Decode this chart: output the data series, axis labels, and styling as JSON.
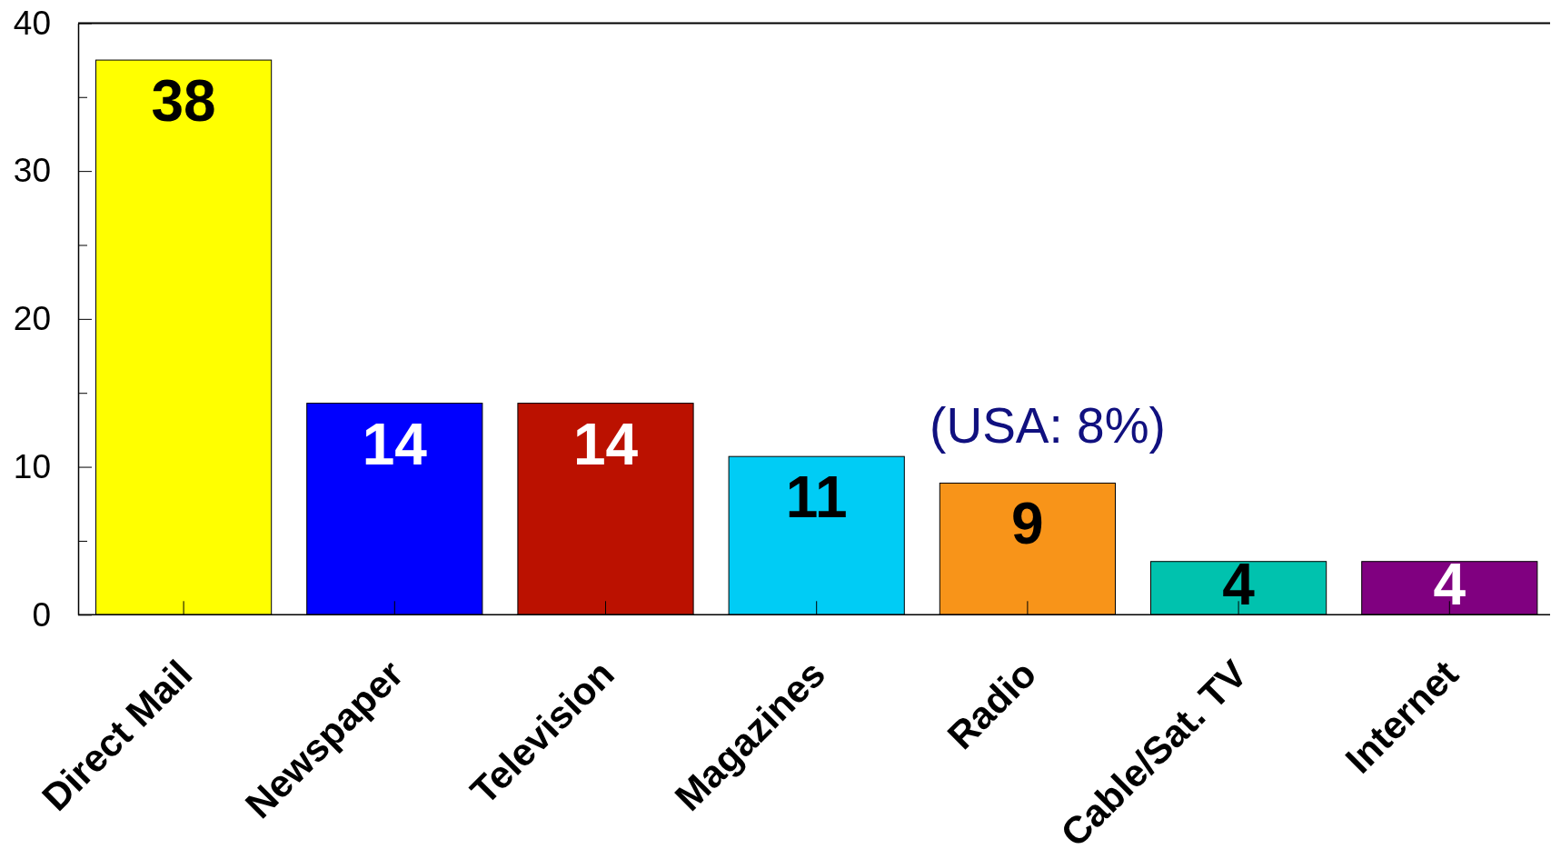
{
  "chart_data": {
    "type": "bar",
    "categories": [
      "Direct Mail",
      "Newspaper",
      "Television",
      "Magazines",
      "Radio",
      "Cable/Sat. TV",
      "Internet"
    ],
    "values": [
      37.5,
      14.3,
      14.3,
      10.7,
      8.9,
      3.6,
      3.6
    ],
    "colors": [
      "#ffff00",
      "#0000ff",
      "#bb1100",
      "#00ccf5",
      "#f89419",
      "#00c2ae",
      "#800080"
    ],
    "value_labels": [
      "38",
      "14",
      "14",
      "11",
      "9",
      "4",
      "4"
    ],
    "ylim": [
      0,
      40
    ],
    "yticks": [
      0,
      {
        "value": 5,
        "label": null
      },
      10,
      {
        "value": 15,
        "label": null
      },
      20,
      {
        "value": 25,
        "label": null
      },
      30,
      {
        "value": 35,
        "label": null
      },
      40
    ],
    "annotations": [
      "(USA: 8%)"
    ]
  }
}
